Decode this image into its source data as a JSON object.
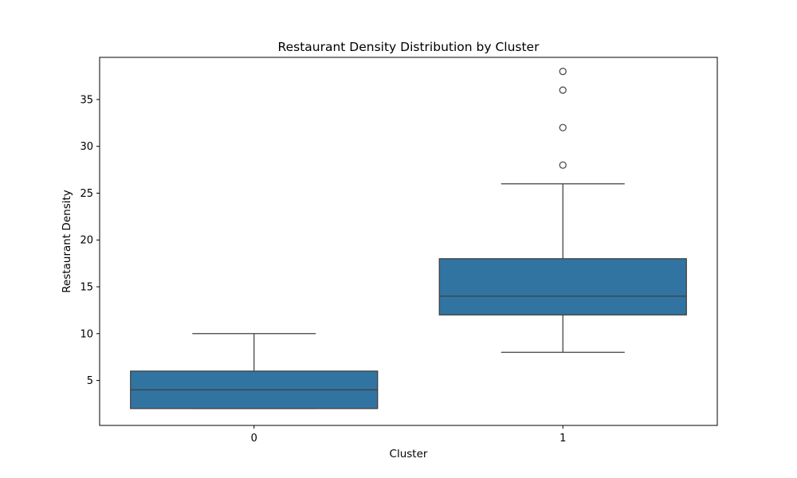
{
  "chart_data": {
    "type": "box",
    "title": "Restaurant Density Distribution by Cluster",
    "xlabel": "Cluster",
    "ylabel": "Restaurant Density",
    "categories": [
      "0",
      "1"
    ],
    "ylim": [
      0.2,
      39.5
    ],
    "yticks": [
      5,
      10,
      15,
      20,
      25,
      30,
      35
    ],
    "grid": false,
    "box_color": "#3274a1",
    "line_color": "#3f3f3f",
    "boxes": [
      {
        "category": "0",
        "whisker_low": 2,
        "q1": 2,
        "median": 4,
        "q3": 6,
        "whisker_high": 10,
        "outliers": []
      },
      {
        "category": "1",
        "whisker_low": 8,
        "q1": 12,
        "median": 14,
        "q3": 18,
        "whisker_high": 26,
        "outliers": [
          28,
          32,
          36,
          38
        ]
      }
    ]
  }
}
